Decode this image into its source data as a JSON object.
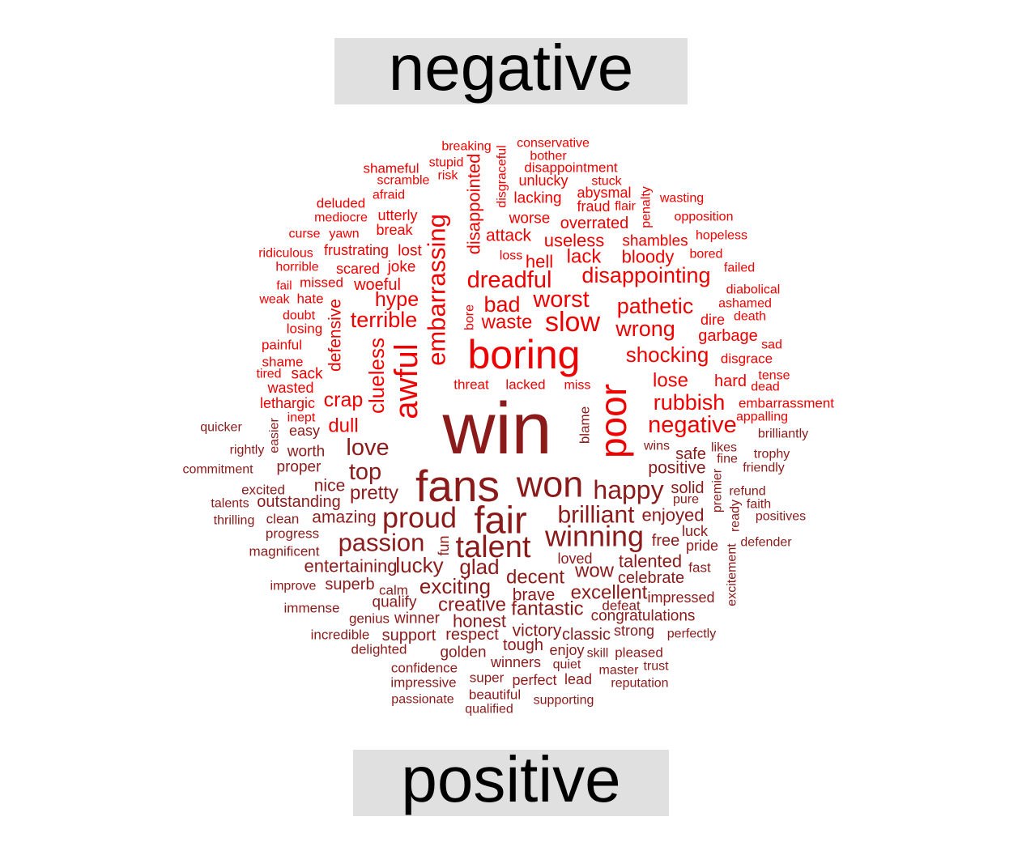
{
  "labels": {
    "negative": "negative",
    "positive": "positive"
  },
  "colors": {
    "negative": "#ee0000",
    "positive": "#8b1a1a",
    "label_bg": "#e0e0e0"
  },
  "words": [
    {
      "t": "breaking",
      "g": "n",
      "w": 1.4
    },
    {
      "t": "conservative",
      "g": "n",
      "w": 1.4
    },
    {
      "t": "stupid",
      "g": "n",
      "w": 1.4
    },
    {
      "t": "bother",
      "g": "n",
      "w": 1.4
    },
    {
      "t": "shameful",
      "g": "n",
      "w": 1.5
    },
    {
      "t": "disappointment",
      "g": "n",
      "w": 1.5
    },
    {
      "t": "scramble",
      "g": "n",
      "w": 1.4
    },
    {
      "t": "risk",
      "g": "n",
      "w": 1.4
    },
    {
      "t": "unlucky",
      "g": "n",
      "w": 1.6
    },
    {
      "t": "stuck",
      "g": "n",
      "w": 1.4
    },
    {
      "t": "afraid",
      "g": "n",
      "w": 1.4
    },
    {
      "t": "disgraceful",
      "g": "n",
      "w": 1.4
    },
    {
      "t": "abysmal",
      "g": "n",
      "w": 1.6
    },
    {
      "t": "wasting",
      "g": "n",
      "w": 1.4
    },
    {
      "t": "deluded",
      "g": "n",
      "w": 1.5
    },
    {
      "t": "disappointed",
      "g": "n",
      "w": 2.0
    },
    {
      "t": "lacking",
      "g": "n",
      "w": 1.7
    },
    {
      "t": "fraud",
      "g": "n",
      "w": 1.6
    },
    {
      "t": "flair",
      "g": "n",
      "w": 1.4
    },
    {
      "t": "penalty",
      "g": "n",
      "w": 1.4
    },
    {
      "t": "mediocre",
      "g": "n",
      "w": 1.4
    },
    {
      "t": "utterly",
      "g": "n",
      "w": 1.6
    },
    {
      "t": "worse",
      "g": "n",
      "w": 1.7
    },
    {
      "t": "opposition",
      "g": "n",
      "w": 1.4
    },
    {
      "t": "overrated",
      "g": "n",
      "w": 1.8
    },
    {
      "t": "curse",
      "g": "n",
      "w": 1.4
    },
    {
      "t": "yawn",
      "g": "n",
      "w": 1.4
    },
    {
      "t": "break",
      "g": "n",
      "w": 1.6
    },
    {
      "t": "embarrassing",
      "g": "n",
      "w": 2.8
    },
    {
      "t": "attack",
      "g": "n",
      "w": 1.9
    },
    {
      "t": "hopeless",
      "g": "n",
      "w": 1.4
    },
    {
      "t": "useless",
      "g": "n",
      "w": 2.0
    },
    {
      "t": "shambles",
      "g": "n",
      "w": 1.7
    },
    {
      "t": "ridiculous",
      "g": "n",
      "w": 1.4
    },
    {
      "t": "frustrating",
      "g": "n",
      "w": 1.6
    },
    {
      "t": "lost",
      "g": "n",
      "w": 1.7
    },
    {
      "t": "loss",
      "g": "n",
      "w": 1.4
    },
    {
      "t": "lack",
      "g": "n",
      "w": 2.2
    },
    {
      "t": "bloody",
      "g": "n",
      "w": 2.0
    },
    {
      "t": "bored",
      "g": "n",
      "w": 1.4
    },
    {
      "t": "horrible",
      "g": "n",
      "w": 1.4
    },
    {
      "t": "scared",
      "g": "n",
      "w": 1.6
    },
    {
      "t": "joke",
      "g": "n",
      "w": 1.7
    },
    {
      "t": "hell",
      "g": "n",
      "w": 2.0
    },
    {
      "t": "failed",
      "g": "n",
      "w": 1.4
    },
    {
      "t": "dreadful",
      "g": "n",
      "w": 2.6
    },
    {
      "t": "disappointing",
      "g": "n",
      "w": 2.4
    },
    {
      "t": "missed",
      "g": "n",
      "w": 1.5
    },
    {
      "t": "woeful",
      "g": "n",
      "w": 1.8
    },
    {
      "t": "fail",
      "g": "n",
      "w": 1.3
    },
    {
      "t": "diabolical",
      "g": "n",
      "w": 1.4
    },
    {
      "t": "weak",
      "g": "n",
      "w": 1.4
    },
    {
      "t": "hate",
      "g": "n",
      "w": 1.5
    },
    {
      "t": "hype",
      "g": "n",
      "w": 2.2
    },
    {
      "t": "bad",
      "g": "n",
      "w": 2.4
    },
    {
      "t": "worst",
      "g": "n",
      "w": 2.6
    },
    {
      "t": "pathetic",
      "g": "n",
      "w": 2.4
    },
    {
      "t": "ashamed",
      "g": "n",
      "w": 1.4
    },
    {
      "t": "doubt",
      "g": "n",
      "w": 1.4
    },
    {
      "t": "terrible",
      "g": "n",
      "w": 2.4
    },
    {
      "t": "bore",
      "g": "n",
      "w": 1.4
    },
    {
      "t": "waste",
      "g": "n",
      "w": 2.2
    },
    {
      "t": "slow",
      "g": "n",
      "w": 3.1
    },
    {
      "t": "dire",
      "g": "n",
      "w": 1.6
    },
    {
      "t": "death",
      "g": "n",
      "w": 1.4
    },
    {
      "t": "defensive",
      "g": "n",
      "w": 1.9
    },
    {
      "t": "losing",
      "g": "n",
      "w": 1.5
    },
    {
      "t": "wrong",
      "g": "n",
      "w": 2.4
    },
    {
      "t": "garbage",
      "g": "n",
      "w": 1.8
    },
    {
      "t": "painful",
      "g": "n",
      "w": 1.5
    },
    {
      "t": "boring",
      "g": "n",
      "w": 4.5
    },
    {
      "t": "sad",
      "g": "n",
      "w": 1.4
    },
    {
      "t": "shocking",
      "g": "n",
      "w": 2.3
    },
    {
      "t": "disgrace",
      "g": "n",
      "w": 1.5
    },
    {
      "t": "shame",
      "g": "n",
      "w": 1.5
    },
    {
      "t": "awful",
      "g": "n",
      "w": 3.6
    },
    {
      "t": "clueless",
      "g": "n",
      "w": 2.3
    },
    {
      "t": "tired",
      "g": "n",
      "w": 1.4
    },
    {
      "t": "sack",
      "g": "n",
      "w": 1.7
    },
    {
      "t": "tense",
      "g": "n",
      "w": 1.4
    },
    {
      "t": "threat",
      "g": "n",
      "w": 1.5
    },
    {
      "t": "lacked",
      "g": "n",
      "w": 1.5
    },
    {
      "t": "miss",
      "g": "n",
      "w": 1.4
    },
    {
      "t": "lose",
      "g": "n",
      "w": 2.2
    },
    {
      "t": "hard",
      "g": "n",
      "w": 1.8
    },
    {
      "t": "wasted",
      "g": "n",
      "w": 1.6
    },
    {
      "t": "dead",
      "g": "n",
      "w": 1.4
    },
    {
      "t": "poor",
      "g": "n",
      "w": 4.2
    },
    {
      "t": "crap",
      "g": "n",
      "w": 2.3
    },
    {
      "t": "rubbish",
      "g": "n",
      "w": 2.4
    },
    {
      "t": "lethargic",
      "g": "n",
      "w": 1.6
    },
    {
      "t": "embarrassment",
      "g": "n",
      "w": 1.5
    },
    {
      "t": "inept",
      "g": "n",
      "w": 1.4
    },
    {
      "t": "appalling",
      "g": "n",
      "w": 1.4
    },
    {
      "t": "dull",
      "g": "n",
      "w": 2.2
    },
    {
      "t": "negative",
      "g": "n",
      "w": 2.6
    },
    {
      "t": "quicker",
      "g": "p",
      "w": 1.4
    },
    {
      "t": "easier",
      "g": "p",
      "w": 1.4
    },
    {
      "t": "easy",
      "g": "p",
      "w": 1.6
    },
    {
      "t": "blame",
      "g": "p",
      "w": 1.5
    },
    {
      "t": "brilliantly",
      "g": "p",
      "w": 1.4
    },
    {
      "t": "win",
      "g": "p",
      "w": 8.0
    },
    {
      "t": "rightly",
      "g": "p",
      "w": 1.4
    },
    {
      "t": "worth",
      "g": "p",
      "w": 1.7
    },
    {
      "t": "love",
      "g": "p",
      "w": 2.6
    },
    {
      "t": "wins",
      "g": "p",
      "w": 1.4
    },
    {
      "t": "safe",
      "g": "p",
      "w": 1.8
    },
    {
      "t": "likes",
      "g": "p",
      "w": 1.4
    },
    {
      "t": "trophy",
      "g": "p",
      "w": 1.4
    },
    {
      "t": "fine",
      "g": "p",
      "w": 1.4
    },
    {
      "t": "proper",
      "g": "p",
      "w": 1.7
    },
    {
      "t": "commitment",
      "g": "p",
      "w": 1.4
    },
    {
      "t": "top",
      "g": "p",
      "w": 2.6
    },
    {
      "t": "positive",
      "g": "p",
      "w": 1.9
    },
    {
      "t": "friendly",
      "g": "p",
      "w": 1.4
    },
    {
      "t": "fans",
      "g": "p",
      "w": 5.0
    },
    {
      "t": "won",
      "g": "p",
      "w": 4.0
    },
    {
      "t": "nice",
      "g": "p",
      "w": 1.9
    },
    {
      "t": "premier",
      "g": "p",
      "w": 1.4
    },
    {
      "t": "excited",
      "g": "p",
      "w": 1.5
    },
    {
      "t": "happy",
      "g": "p",
      "w": 2.9
    },
    {
      "t": "solid",
      "g": "p",
      "w": 1.8
    },
    {
      "t": "refund",
      "g": "p",
      "w": 1.4
    },
    {
      "t": "pretty",
      "g": "p",
      "w": 2.2
    },
    {
      "t": "outstanding",
      "g": "p",
      "w": 1.8
    },
    {
      "t": "pure",
      "g": "p",
      "w": 1.4
    },
    {
      "t": "talents",
      "g": "p",
      "w": 1.4
    },
    {
      "t": "faith",
      "g": "p",
      "w": 1.4
    },
    {
      "t": "ready",
      "g": "p",
      "w": 1.4
    },
    {
      "t": "brilliant",
      "g": "p",
      "w": 2.7
    },
    {
      "t": "enjoyed",
      "g": "p",
      "w": 2.0
    },
    {
      "t": "fair",
      "g": "p",
      "w": 4.2
    },
    {
      "t": "proud",
      "g": "p",
      "w": 3.2
    },
    {
      "t": "amazing",
      "g": "p",
      "w": 1.9
    },
    {
      "t": "clean",
      "g": "p",
      "w": 1.6
    },
    {
      "t": "thrilling",
      "g": "p",
      "w": 1.4
    },
    {
      "t": "positives",
      "g": "p",
      "w": 1.4
    },
    {
      "t": "luck",
      "g": "p",
      "w": 1.6
    },
    {
      "t": "progress",
      "g": "p",
      "w": 1.5
    },
    {
      "t": "winning",
      "g": "p",
      "w": 3.2
    },
    {
      "t": "free",
      "g": "p",
      "w": 1.8
    },
    {
      "t": "passion",
      "g": "p",
      "w": 2.8
    },
    {
      "t": "pride",
      "g": "p",
      "w": 1.6
    },
    {
      "t": "defender",
      "g": "p",
      "w": 1.4
    },
    {
      "t": "fun",
      "g": "p",
      "w": 1.6
    },
    {
      "t": "talent",
      "g": "p",
      "w": 3.4
    },
    {
      "t": "magnificent",
      "g": "p",
      "w": 1.5
    },
    {
      "t": "loved",
      "g": "p",
      "w": 1.6
    },
    {
      "t": "excitement",
      "g": "p",
      "w": 1.4
    },
    {
      "t": "lucky",
      "g": "p",
      "w": 2.3
    },
    {
      "t": "entertaining",
      "g": "p",
      "w": 2.0
    },
    {
      "t": "glad",
      "g": "p",
      "w": 2.3
    },
    {
      "t": "talented",
      "g": "p",
      "w": 2.0
    },
    {
      "t": "fast",
      "g": "p",
      "w": 1.5
    },
    {
      "t": "wow",
      "g": "p",
      "w": 2.2
    },
    {
      "t": "decent",
      "g": "p",
      "w": 2.2
    },
    {
      "t": "celebrate",
      "g": "p",
      "w": 1.8
    },
    {
      "t": "improve",
      "g": "p",
      "w": 1.4
    },
    {
      "t": "superb",
      "g": "p",
      "w": 1.8
    },
    {
      "t": "calm",
      "g": "p",
      "w": 1.5
    },
    {
      "t": "exciting",
      "g": "p",
      "w": 2.3
    },
    {
      "t": "excellent",
      "g": "p",
      "w": 2.2
    },
    {
      "t": "impressed",
      "g": "p",
      "w": 1.6
    },
    {
      "t": "brave",
      "g": "p",
      "w": 1.9
    },
    {
      "t": "qualify",
      "g": "p",
      "w": 1.7
    },
    {
      "t": "creative",
      "g": "p",
      "w": 2.2
    },
    {
      "t": "fantastic",
      "g": "p",
      "w": 2.2
    },
    {
      "t": "defeat",
      "g": "p",
      "w": 1.5
    },
    {
      "t": "immense",
      "g": "p",
      "w": 1.5
    },
    {
      "t": "genius",
      "g": "p",
      "w": 1.5
    },
    {
      "t": "winner",
      "g": "p",
      "w": 1.7
    },
    {
      "t": "honest",
      "g": "p",
      "w": 2.0
    },
    {
      "t": "congratulations",
      "g": "p",
      "w": 1.7
    },
    {
      "t": "victory",
      "g": "p",
      "w": 1.9
    },
    {
      "t": "strong",
      "g": "p",
      "w": 1.6
    },
    {
      "t": "incredible",
      "g": "p",
      "w": 1.5
    },
    {
      "t": "support",
      "g": "p",
      "w": 1.8
    },
    {
      "t": "respect",
      "g": "p",
      "w": 1.8
    },
    {
      "t": "classic",
      "g": "p",
      "w": 1.8
    },
    {
      "t": "perfectly",
      "g": "p",
      "w": 1.4
    },
    {
      "t": "delighted",
      "g": "p",
      "w": 1.5
    },
    {
      "t": "tough",
      "g": "p",
      "w": 1.8
    },
    {
      "t": "enjoy",
      "g": "p",
      "w": 1.6
    },
    {
      "t": "golden",
      "g": "p",
      "w": 1.7
    },
    {
      "t": "skill",
      "g": "p",
      "w": 1.4
    },
    {
      "t": "pleased",
      "g": "p",
      "w": 1.5
    },
    {
      "t": "winners",
      "g": "p",
      "w": 1.6
    },
    {
      "t": "quiet",
      "g": "p",
      "w": 1.4
    },
    {
      "t": "confidence",
      "g": "p",
      "w": 1.5
    },
    {
      "t": "master",
      "g": "p",
      "w": 1.4
    },
    {
      "t": "trust",
      "g": "p",
      "w": 1.4
    },
    {
      "t": "super",
      "g": "p",
      "w": 1.5
    },
    {
      "t": "perfect",
      "g": "p",
      "w": 1.6
    },
    {
      "t": "lead",
      "g": "p",
      "w": 1.6
    },
    {
      "t": "impressive",
      "g": "p",
      "w": 1.5
    },
    {
      "t": "reputation",
      "g": "p",
      "w": 1.4
    },
    {
      "t": "beautiful",
      "g": "p",
      "w": 1.5
    },
    {
      "t": "passionate",
      "g": "p",
      "w": 1.4
    },
    {
      "t": "supporting",
      "g": "p",
      "w": 1.4
    },
    {
      "t": "qualified",
      "g": "p",
      "w": 1.4
    }
  ]
}
